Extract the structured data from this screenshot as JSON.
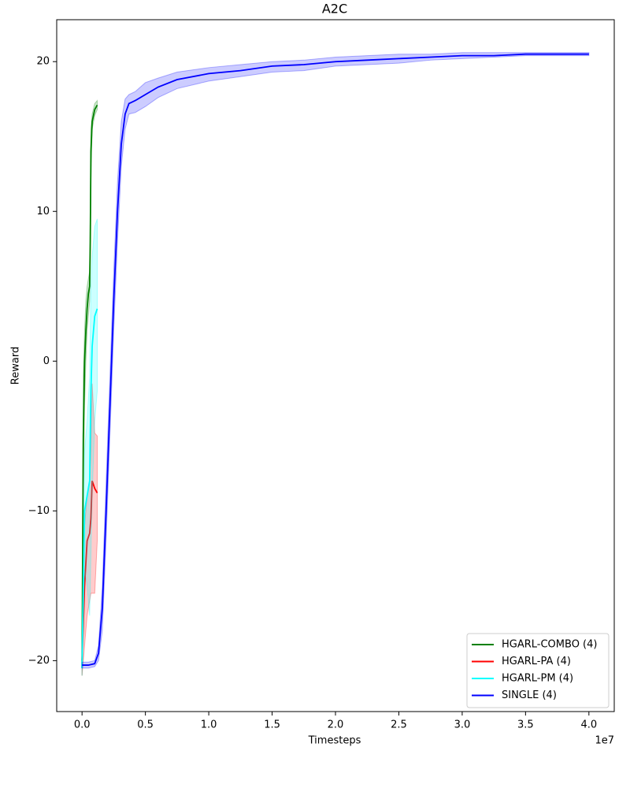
{
  "chart_data": {
    "type": "line",
    "title": "A2C",
    "x_label": "Timesteps",
    "y_label": "Reward",
    "x_offset": "1e7",
    "xlim": [
      -0.2,
      4.2
    ],
    "ylim": [
      -23.4,
      22.8
    ],
    "xticks": [
      {
        "value": 0,
        "label": "0.0"
      },
      0.5,
      {
        "value": 1,
        "label": "1.0"
      },
      1.5,
      {
        "value": 2,
        "label": "2.0"
      },
      2.5,
      {
        "value": 3,
        "label": "3.0"
      },
      3.5,
      {
        "value": 4,
        "label": "4.0"
      }
    ],
    "yticks": [
      {
        "value": -20,
        "label": "−20"
      },
      {
        "value": -10,
        "label": "−10"
      },
      0,
      10,
      20
    ],
    "legend": "lower right",
    "series": [
      {
        "name": "HGARL-COMBO (4)",
        "color": "#008000",
        "x": [
          0,
          0.01,
          0.02,
          0.03,
          0.04,
          0.05,
          0.06,
          0.065,
          0.07,
          0.08,
          0.1,
          0.12
        ],
        "values": [
          -20.5,
          -5,
          0,
          2,
          3.5,
          4.5,
          5,
          8,
          14,
          16,
          16.8,
          17.1
        ],
        "lower": [
          -21,
          -9,
          -3,
          0,
          2,
          3,
          4,
          6,
          12,
          15.5,
          16.4,
          16.8
        ],
        "upper": [
          -20,
          -1,
          2,
          4,
          5,
          5.5,
          6,
          10,
          15.5,
          16.5,
          17.2,
          17.4
        ]
      },
      {
        "name": "HGARL-PA (4)",
        "color": "#ff0000",
        "x": [
          0,
          0.02,
          0.04,
          0.06,
          0.07,
          0.08,
          0.1,
          0.12
        ],
        "values": [
          -20,
          -15,
          -12,
          -11.5,
          -10.5,
          -8,
          -8.5,
          -8.8
        ],
        "lower": [
          -21,
          -19,
          -17,
          -16,
          -15.5,
          -15.5,
          -15.5,
          -12
        ],
        "upper": [
          -19,
          -11,
          -9,
          -8,
          -6,
          -1.5,
          -4.8,
          -5
        ]
      },
      {
        "name": "HGARL-PM (4)",
        "color": "#00ffff",
        "x": [
          0,
          0.02,
          0.04,
          0.06,
          0.07,
          0.08,
          0.1,
          0.12
        ],
        "values": [
          -20.5,
          -10,
          -9,
          -8,
          -2,
          1,
          3,
          3.5
        ],
        "lower": [
          -21,
          -14,
          -15,
          -17,
          -13,
          -9,
          -4,
          -2
        ],
        "upper": [
          -19,
          -6,
          -4,
          -1,
          5,
          7,
          9,
          9.5
        ]
      },
      {
        "name": "SINGLE (4)",
        "color": "#0000ff",
        "x": [
          0,
          0.05,
          0.1,
          0.13,
          0.16,
          0.19,
          0.22,
          0.25,
          0.28,
          0.31,
          0.34,
          0.37,
          0.42,
          0.5,
          0.6,
          0.75,
          1,
          1.25,
          1.5,
          1.75,
          2,
          2.25,
          2.5,
          2.75,
          3,
          3.25,
          3.5,
          3.75,
          4
        ],
        "values": [
          -20.3,
          -20.3,
          -20.2,
          -19.5,
          -16.5,
          -10,
          -3,
          4,
          10,
          14.5,
          16.5,
          17.2,
          17.4,
          17.8,
          18.3,
          18.8,
          19.2,
          19.4,
          19.7,
          19.8,
          20,
          20.1,
          20.2,
          20.3,
          20.4,
          20.4,
          20.5,
          20.5,
          20.5
        ],
        "lower": [
          -20.5,
          -20.5,
          -20.4,
          -20,
          -18,
          -12,
          -5,
          2,
          8,
          13,
          15.5,
          16.5,
          16.6,
          17,
          17.6,
          18.2,
          18.7,
          19,
          19.3,
          19.4,
          19.7,
          19.8,
          19.9,
          20.1,
          20.2,
          20.3,
          20.4,
          20.4,
          20.4
        ],
        "upper": [
          -20.1,
          -20.1,
          -20,
          -19,
          -15,
          -8,
          -1,
          6,
          12,
          16,
          17.5,
          17.8,
          18,
          18.6,
          18.9,
          19.3,
          19.6,
          19.8,
          20,
          20.1,
          20.3,
          20.4,
          20.5,
          20.5,
          20.6,
          20.6,
          20.6,
          20.6,
          20.6
        ]
      }
    ]
  }
}
